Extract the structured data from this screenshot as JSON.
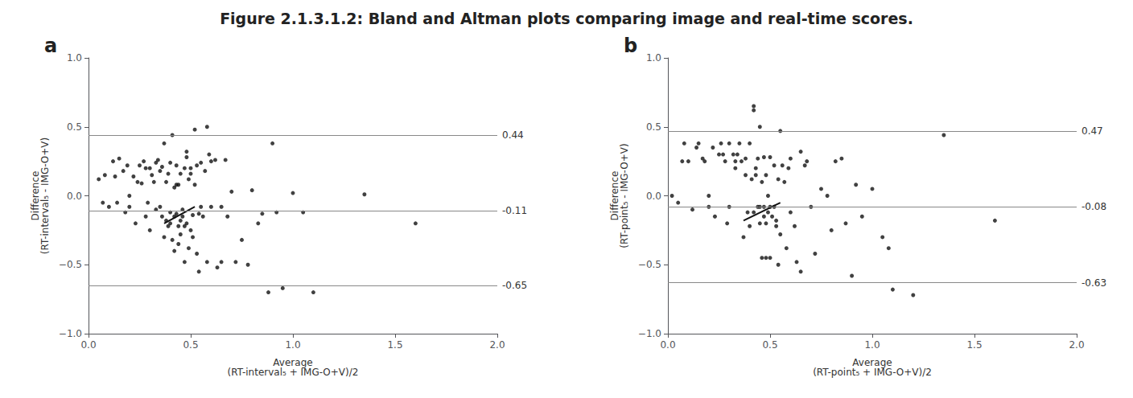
{
  "title": "Figure 2.1.3.1.2: Bland and Altman plots comparing image and real-time scores.",
  "chart_data": [
    {
      "type": "scatter",
      "title": "a",
      "xlabel": "Average\n(RT-interval₅ + IMG-O+V)/2",
      "ylabel": "Difference\n(RT-interval₅ - IMG-O+V)",
      "xlim": [
        0.0,
        2.0
      ],
      "ylim": [
        -1.0,
        1.0
      ],
      "xticks": [
        {
          "value": 0.0,
          "label": "0.0"
        },
        {
          "value": 0.5,
          "label": "0.5"
        },
        {
          "value": 1.0,
          "label": "1.0"
        },
        {
          "value": 1.5,
          "label": "1.5"
        },
        {
          "value": 2.0,
          "label": "2.0"
        }
      ],
      "yticks": [
        {
          "value": -1.0,
          "label": "−1.0"
        },
        {
          "value": -0.5,
          "label": "−0.5"
        },
        {
          "value": 0.0,
          "label": "0.0"
        },
        {
          "value": 0.5,
          "label": "0.5"
        },
        {
          "value": 1.0,
          "label": "1.0"
        }
      ],
      "grid": false,
      "hlines": {
        "values": [
          0.44,
          -0.11,
          -0.65
        ],
        "color": "#888888"
      },
      "series": [
        {
          "type": "scatter",
          "color": "#111111",
          "x": [
            0.05,
            0.07,
            0.08,
            0.1,
            0.12,
            0.13,
            0.14,
            0.15,
            0.17,
            0.18,
            0.19,
            0.2,
            0.2,
            0.22,
            0.23,
            0.24,
            0.25,
            0.26,
            0.27,
            0.28,
            0.28,
            0.29,
            0.3,
            0.3,
            0.31,
            0.32,
            0.33,
            0.33,
            0.34,
            0.35,
            0.35,
            0.36,
            0.36,
            0.37,
            0.37,
            0.38,
            0.38,
            0.39,
            0.39,
            0.4,
            0.4,
            0.4,
            0.41,
            0.41,
            0.42,
            0.42,
            0.42,
            0.43,
            0.43,
            0.43,
            0.44,
            0.44,
            0.44,
            0.45,
            0.45,
            0.45,
            0.46,
            0.46,
            0.47,
            0.47,
            0.47,
            0.48,
            0.48,
            0.48,
            0.49,
            0.49,
            0.5,
            0.5,
            0.5,
            0.51,
            0.51,
            0.52,
            0.52,
            0.53,
            0.53,
            0.54,
            0.54,
            0.55,
            0.55,
            0.56,
            0.57,
            0.58,
            0.58,
            0.59,
            0.6,
            0.6,
            0.62,
            0.63,
            0.65,
            0.65,
            0.67,
            0.68,
            0.7,
            0.72,
            0.75,
            0.78,
            0.8,
            0.83,
            0.85,
            0.88,
            0.9,
            0.92,
            0.95,
            1.0,
            1.05,
            1.1,
            1.35,
            1.6
          ],
          "values": [
            0.12,
            -0.05,
            0.15,
            -0.08,
            0.25,
            0.14,
            -0.05,
            0.27,
            0.18,
            -0.12,
            0.22,
            0.0,
            -0.08,
            0.14,
            -0.2,
            0.1,
            0.22,
            0.09,
            0.25,
            -0.15,
            0.2,
            -0.05,
            0.2,
            -0.25,
            0.15,
            0.1,
            -0.1,
            0.24,
            0.26,
            -0.08,
            0.18,
            0.21,
            -0.15,
            0.38,
            -0.3,
            0.1,
            -0.18,
            0.16,
            -0.22,
            0.24,
            -0.12,
            -0.2,
            0.44,
            -0.32,
            0.06,
            -0.15,
            -0.4,
            0.22,
            -0.13,
            0.08,
            -0.22,
            0.08,
            -0.35,
            -0.18,
            -0.28,
            0.16,
            -0.1,
            -0.15,
            0.2,
            -0.22,
            -0.48,
            0.28,
            -0.2,
            0.32,
            -0.38,
            0.12,
            0.16,
            -0.25,
            0.2,
            -0.3,
            -0.14,
            0.08,
            0.48,
            -0.42,
            0.22,
            -0.55,
            -0.13,
            0.24,
            -0.08,
            -0.15,
            0.18,
            0.5,
            -0.48,
            0.3,
            -0.08,
            0.25,
            0.26,
            -0.52,
            -0.08,
            -0.48,
            0.26,
            -0.15,
            0.03,
            -0.48,
            -0.32,
            -0.5,
            0.04,
            -0.2,
            -0.13,
            -0.7,
            0.38,
            -0.12,
            -0.67,
            0.02,
            -0.12,
            -0.7,
            0.01,
            -0.2
          ]
        },
        {
          "type": "line",
          "color": "#111111",
          "x": [
            0.37,
            0.52
          ],
          "values": [
            -0.2,
            -0.08
          ]
        }
      ]
    },
    {
      "type": "scatter",
      "title": "b",
      "xlabel": "Average\n(RT-point₅ + IMG-O+V)/2",
      "ylabel": "Difference\n(RT-point₅ - IMG-O+V)",
      "xlim": [
        0.0,
        2.0
      ],
      "ylim": [
        -1.0,
        1.0
      ],
      "xticks": [
        {
          "value": 0.0,
          "label": "0.0"
        },
        {
          "value": 0.5,
          "label": "0.5"
        },
        {
          "value": 1.0,
          "label": "1.0"
        },
        {
          "value": 1.5,
          "label": "1.5"
        },
        {
          "value": 2.0,
          "label": "2.0"
        }
      ],
      "yticks": [
        {
          "value": -1.0,
          "label": "−1.0"
        },
        {
          "value": -0.5,
          "label": "−0.5"
        },
        {
          "value": 0.0,
          "label": "0.0"
        },
        {
          "value": 0.5,
          "label": "0.5"
        },
        {
          "value": 1.0,
          "label": "1.0"
        }
      ],
      "grid": false,
      "hlines": {
        "values": [
          0.47,
          -0.08,
          -0.63
        ],
        "color": "#888888"
      },
      "series": [
        {
          "type": "scatter",
          "color": "#111111",
          "x": [
            0.02,
            0.05,
            0.07,
            0.08,
            0.1,
            0.12,
            0.14,
            0.15,
            0.17,
            0.18,
            0.2,
            0.2,
            0.22,
            0.23,
            0.25,
            0.26,
            0.27,
            0.28,
            0.29,
            0.3,
            0.3,
            0.32,
            0.33,
            0.33,
            0.34,
            0.35,
            0.36,
            0.37,
            0.38,
            0.38,
            0.39,
            0.4,
            0.4,
            0.41,
            0.42,
            0.42,
            0.42,
            0.43,
            0.43,
            0.44,
            0.44,
            0.45,
            0.45,
            0.45,
            0.46,
            0.46,
            0.47,
            0.47,
            0.47,
            0.48,
            0.48,
            0.48,
            0.49,
            0.49,
            0.5,
            0.5,
            0.5,
            0.51,
            0.52,
            0.52,
            0.53,
            0.53,
            0.54,
            0.54,
            0.55,
            0.55,
            0.56,
            0.57,
            0.58,
            0.59,
            0.6,
            0.6,
            0.62,
            0.63,
            0.65,
            0.65,
            0.67,
            0.68,
            0.7,
            0.72,
            0.75,
            0.78,
            0.8,
            0.82,
            0.85,
            0.87,
            0.9,
            0.92,
            0.95,
            1.0,
            1.05,
            1.08,
            1.1,
            1.2,
            1.35,
            1.6
          ],
          "values": [
            0.0,
            -0.05,
            0.25,
            0.38,
            0.25,
            -0.1,
            0.35,
            0.38,
            0.27,
            0.25,
            0.0,
            -0.08,
            0.35,
            -0.15,
            0.3,
            0.38,
            0.3,
            0.25,
            -0.2,
            0.38,
            -0.08,
            0.3,
            0.25,
            0.2,
            0.3,
            0.38,
            0.25,
            -0.3,
            0.15,
            0.27,
            -0.12,
            0.38,
            -0.22,
            0.12,
            0.65,
            0.62,
            -0.12,
            0.2,
            0.15,
            0.27,
            -0.08,
            0.5,
            -0.2,
            -0.08,
            -0.45,
            0.1,
            0.28,
            -0.15,
            -0.08,
            0.15,
            -0.2,
            -0.45,
            0.0,
            -0.12,
            -0.45,
            0.28,
            -0.08,
            -0.15,
            0.22,
            -0.08,
            -0.22,
            -0.18,
            0.12,
            -0.5,
            0.47,
            -0.28,
            0.22,
            0.1,
            -0.38,
            0.2,
            0.27,
            -0.12,
            -0.22,
            -0.48,
            0.32,
            -0.55,
            0.22,
            0.25,
            -0.08,
            -0.42,
            0.05,
            0.0,
            -0.25,
            0.25,
            0.27,
            -0.2,
            -0.58,
            0.08,
            -0.15,
            0.05,
            -0.3,
            -0.38,
            -0.68,
            -0.72,
            0.44,
            -0.18
          ]
        },
        {
          "type": "line",
          "color": "#111111",
          "x": [
            0.37,
            0.55
          ],
          "values": [
            -0.18,
            -0.05
          ]
        }
      ]
    }
  ]
}
